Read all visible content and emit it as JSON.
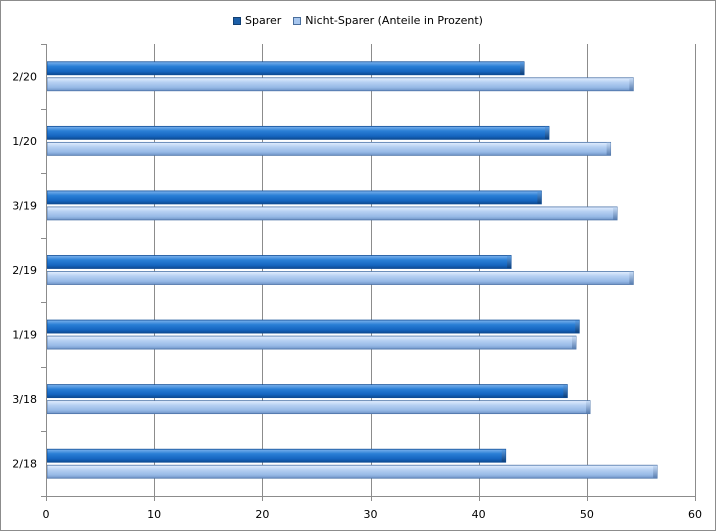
{
  "chart_data": {
    "type": "bar",
    "orientation": "horizontal",
    "categories": [
      "2/20",
      "1/20",
      "3/19",
      "2/19",
      "1/19",
      "3/18",
      "2/18"
    ],
    "series": [
      {
        "name": "Sparer",
        "values": [
          44.2,
          46.5,
          45.8,
          43.0,
          49.3,
          48.2,
          42.5
        ],
        "color": "#1f70c8"
      },
      {
        "name": "Nicht-Sparer (Anteile in Prozent)",
        "values": [
          54.3,
          52.2,
          52.8,
          54.3,
          49.0,
          50.3,
          56.5
        ],
        "color": "#a7c6ee"
      }
    ],
    "xlim": [
      0,
      60
    ],
    "xticks": [
      0,
      10,
      20,
      30,
      40,
      50,
      60
    ],
    "grid": true,
    "legend_position": "top"
  }
}
